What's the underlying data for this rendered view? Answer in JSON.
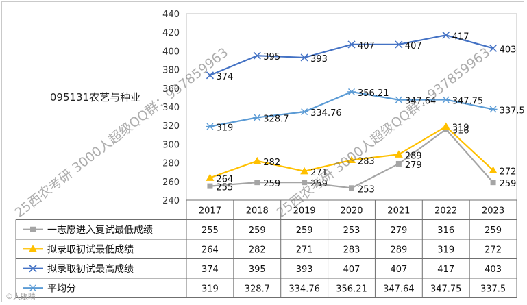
{
  "category_title": "095131农艺与种业",
  "watermark_group": "25西农考研 3000人超级QQ群：937859963",
  "watermark_corner": "©大眼睛",
  "colors": {
    "一志愿进入复试最低成绩": "#a5a5a5",
    "拟录取初试最低成绩": "#ffc000",
    "拟录取初试最高成绩": "#4472c4",
    "平均分": "#5b9bd5"
  },
  "chart_data": {
    "type": "line",
    "categories": [
      "2017",
      "2018",
      "2019",
      "2020",
      "2021",
      "2022",
      "2023"
    ],
    "ylim": [
      240,
      440
    ],
    "yticks": [
      240,
      260,
      280,
      300,
      320,
      340,
      360,
      380,
      400,
      420,
      440
    ],
    "series": [
      {
        "name": "一志愿进入复试最低成绩",
        "marker": "square",
        "values": [
          255,
          259,
          259,
          253,
          279,
          316,
          259
        ],
        "labels": [
          "255",
          "259",
          "259",
          "253",
          "279",
          "316",
          "259"
        ]
      },
      {
        "name": "拟录取初试最低成绩",
        "marker": "triangle",
        "values": [
          264,
          282,
          271,
          283,
          289,
          319,
          272
        ],
        "labels": [
          "264",
          "282",
          "271",
          "283",
          "289",
          "319",
          "272"
        ]
      },
      {
        "name": "拟录取初试最高成绩",
        "marker": "x",
        "values": [
          374,
          395,
          393,
          407,
          407,
          417,
          403
        ],
        "labels": [
          "374",
          "395",
          "393",
          "407",
          "407",
          "417",
          "403"
        ]
      },
      {
        "name": "平均分",
        "marker": "star",
        "values": [
          319,
          328.7,
          334.76,
          356.21,
          347.64,
          347.75,
          337.5
        ],
        "labels": [
          "319",
          "328.7",
          "334.76",
          "356.21",
          "347.64",
          "347.75",
          "337.5"
        ]
      }
    ]
  }
}
